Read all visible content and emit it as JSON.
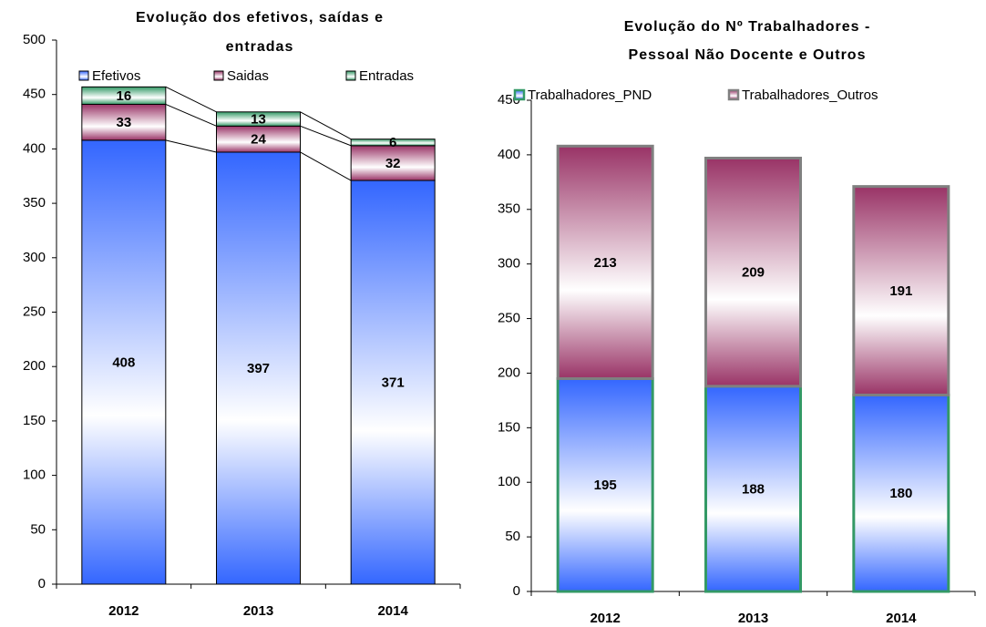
{
  "chart_data": [
    {
      "type": "stacked_bar",
      "title": "Evolução dos efetivos, saídas e entradas",
      "categories": [
        "2012",
        "2013",
        "2014"
      ],
      "series": [
        {
          "name": "Efetivos",
          "color": "#3366ff",
          "border": "#000000",
          "values": [
            408,
            397,
            371
          ]
        },
        {
          "name": "Saidas",
          "color": "#993366",
          "border": "#000000",
          "values": [
            33,
            24,
            32
          ]
        },
        {
          "name": "Entradas",
          "color": "#339966",
          "border": "#000000",
          "values": [
            16,
            13,
            6
          ]
        }
      ],
      "ylim": [
        0,
        500
      ],
      "yticks": [
        0,
        50,
        100,
        150,
        200,
        250,
        300,
        350,
        400,
        450,
        500
      ],
      "series_lines": true,
      "legend": "top"
    },
    {
      "type": "stacked_bar",
      "title": "Evolução do Nº Trabalhadores - Pessoal Não Docente e Outros",
      "categories": [
        "2012",
        "2013",
        "2014"
      ],
      "series": [
        {
          "name": "Trabalhadores_PND",
          "color": "#3366ff",
          "border": "#339966",
          "values": [
            195,
            188,
            180
          ]
        },
        {
          "name": "Trabalhadores_Outros",
          "color": "#993366",
          "border": "#808080",
          "values": [
            213,
            209,
            191
          ]
        }
      ],
      "ylim": [
        0,
        450
      ],
      "yticks": [
        0,
        50,
        100,
        150,
        200,
        250,
        300,
        350,
        400,
        450
      ],
      "series_lines": false,
      "legend": "top"
    }
  ]
}
